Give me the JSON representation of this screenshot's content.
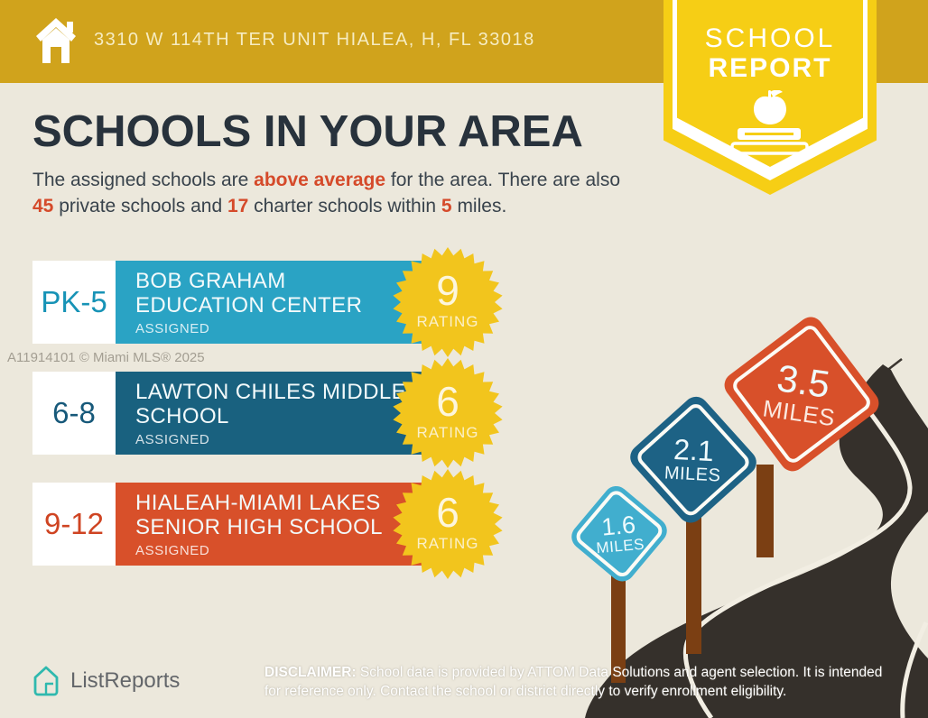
{
  "header": {
    "address": "3310 W 114TH TER UNIT HIALEA, H, FL 33018"
  },
  "ribbon": {
    "line1": "SCHOOL",
    "line2": "REPORT"
  },
  "main": {
    "title": "SCHOOLS IN YOUR AREA",
    "intro_pre": "The assigned schools are ",
    "intro_hl1": "above average",
    "intro_mid1": " for the area. There are also ",
    "intro_hl2": "45",
    "intro_mid2": " private schools and ",
    "intro_hl3": "17",
    "intro_mid3": " charter schools within ",
    "intro_hl4": "5",
    "intro_post": " miles."
  },
  "watermark": "A11914101 © Miami MLS® 2025",
  "schools": [
    {
      "grades": "PK-5",
      "name_line1": "BOB GRAHAM",
      "name_line2": "EDUCATION CENTER",
      "status": "ASSIGNED",
      "rating": "9",
      "rating_label": "RATING",
      "color": "#2AA3C4",
      "grade_color": "#1793B6"
    },
    {
      "grades": "6-8",
      "name_line1": "LAWTON CHILES MIDDLE",
      "name_line2": "SCHOOL",
      "status": "ASSIGNED",
      "rating": "6",
      "rating_label": "RATING",
      "color": "#19617F",
      "grade_color": "#17597A"
    },
    {
      "grades": "9-12",
      "name_line1": "HIALEAH-MIAMI LAKES",
      "name_line2": "SENIOR HIGH SCHOOL",
      "status": "ASSIGNED",
      "rating": "6",
      "rating_label": "RATING",
      "color": "#D8502A",
      "grade_color": "#CF4422"
    }
  ],
  "distance_signs": [
    {
      "value": "1.6",
      "unit": "MILES",
      "color": "#41AECE"
    },
    {
      "value": "2.1",
      "unit": "MILES",
      "color": "#1D6285"
    },
    {
      "value": "3.5",
      "unit": "MILES",
      "color": "#D8502A"
    }
  ],
  "footer": {
    "brand": "ListReports",
    "disclaimer_label": "DISCLAIMER:",
    "disclaimer_text": " School data is provided by ATTOM Data Solutions and agent selection. It is intended for reference only. Contact the school or district directly to verify enrollment eligibility."
  },
  "colors": {
    "background": "#ECE8DC",
    "header_gold": "#D0A31C",
    "ribbon_yellow": "#F6CE15",
    "badge_yellow": "#F2C51D",
    "title_navy": "#28323C",
    "accent_red": "#D54A2A",
    "road_dark": "#35302B",
    "post_brown": "#7B3F13",
    "logo_teal": "#2FB9AE"
  }
}
